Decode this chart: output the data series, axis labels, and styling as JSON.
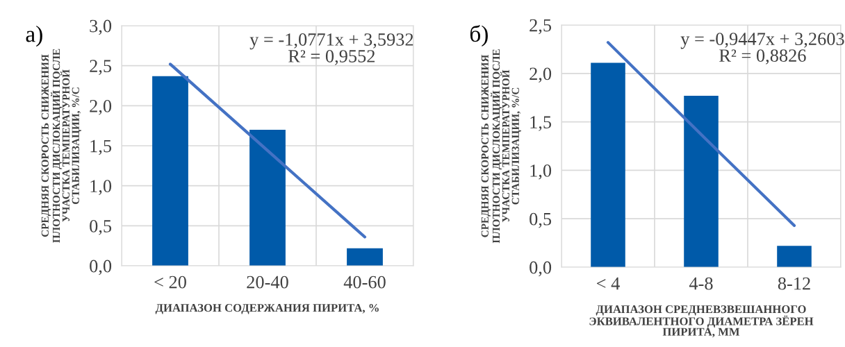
{
  "chart_data": [
    {
      "type": "bar",
      "categories": [
        "< 20",
        "20-40",
        "40-60"
      ],
      "xlabel": "ДИАПАЗОН СОДЕРЖАНИЯ ПИРИТА, %",
      "ylabel": "СРЕДНЯЯ СКОРОСТЬ СНИЖЕНИЯ\nПЛОТНОСТИ ДИСЛОКАЦИЙ ПОСЛЕ\nУЧАСТКА ТЕМПЕРАТУРНОЙ\nСТАБИЛИЗАЦИИ, %/С",
      "series": [
        {
          "color": "#005aa9",
          "values": [
            2.37,
            1.7,
            0.22
          ]
        },
        {
          "type": "line",
          "color": "#4472c4",
          "values": [
            2.52,
            1.44,
            0.36
          ]
        }
      ],
      "ylim": [
        0,
        3
      ],
      "yticks": [
        {
          "value": 0,
          "label": "0,0"
        },
        {
          "value": 0.5,
          "label": "0,5"
        },
        {
          "value": 1,
          "label": "1,0"
        },
        {
          "value": 1.5,
          "label": "1,5"
        },
        {
          "value": 2,
          "label": "2,0"
        },
        {
          "value": 2.5,
          "label": "2,5"
        },
        {
          "value": 3,
          "label": "3,0"
        }
      ],
      "grid": true,
      "annotations": [
        "а)",
        "y = -1,0771x + 3,5932\nR² = 0,9552"
      ]
    },
    {
      "type": "bar",
      "categories": [
        "< 4",
        "4-8",
        "8-12"
      ],
      "xlabel": "ДИАПАЗОН СРЕДНЕВЗВЕШАННОГО\nЭКВИВАЛЕНТНОГО ДИАМЕТРА ЗЁРЕН\nПИРИТА, ММ",
      "ylabel": "СРЕДНЯЯ СКОРОСТЬ СНИЖЕНИЯ\nПЛОТНОСТИ ДИСЛОКАЦИЙ ПОСЛЕ\nУЧАСТКА ТЕМПЕРАТУРНОЙ\nСТАБИЛИЗАЦИИ, %/С",
      "series": [
        {
          "color": "#005aa9",
          "values": [
            2.11,
            1.77,
            0.22
          ]
        },
        {
          "type": "line",
          "color": "#4472c4",
          "values": [
            2.32,
            1.37,
            0.43
          ]
        }
      ],
      "ylim": [
        0,
        2.5
      ],
      "yticks": [
        {
          "value": 0,
          "label": "0,0"
        },
        {
          "value": 0.5,
          "label": "0,5"
        },
        {
          "value": 1,
          "label": "1,0"
        },
        {
          "value": 1.5,
          "label": "1,5"
        },
        {
          "value": 2,
          "label": "2,0"
        },
        {
          "value": 2.5,
          "label": "2,5"
        }
      ],
      "grid": true,
      "annotations": [
        "б)",
        "y = -0,9447x + 3,2603\nR² = 0,8826"
      ]
    }
  ]
}
